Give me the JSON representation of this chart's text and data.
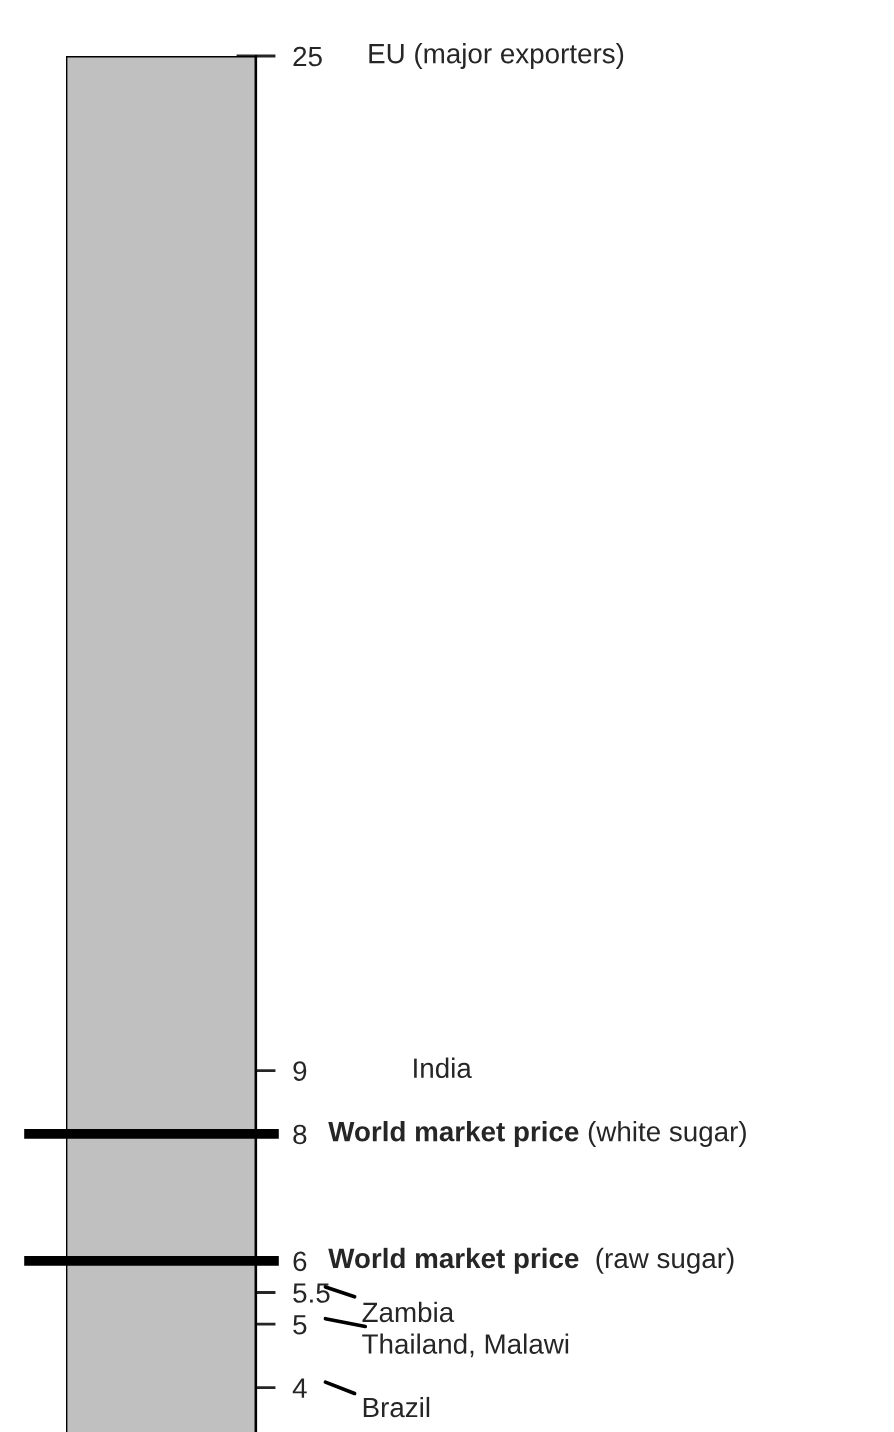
{
  "chart_data": {
    "type": "bar",
    "categories": [
      null
    ],
    "values": [
      25
    ],
    "color": "#c0c0c0",
    "ylim": [
      3.3,
      25
    ],
    "yticks": [
      4,
      5,
      5.5,
      6,
      8,
      9,
      25
    ],
    "tick_labels": "y",
    "ref_lines": [
      {
        "axis": "y",
        "value": 8,
        "label": "World market price (white sugar)",
        "color": "#000000"
      },
      {
        "axis": "y",
        "value": 6,
        "label": "World market price  (raw sugar)",
        "color": "#000000"
      }
    ],
    "annotations": [
      "EU (major exporters)",
      "India",
      "Zambia",
      "Thailand, Malawi",
      "Brazil"
    ]
  }
}
